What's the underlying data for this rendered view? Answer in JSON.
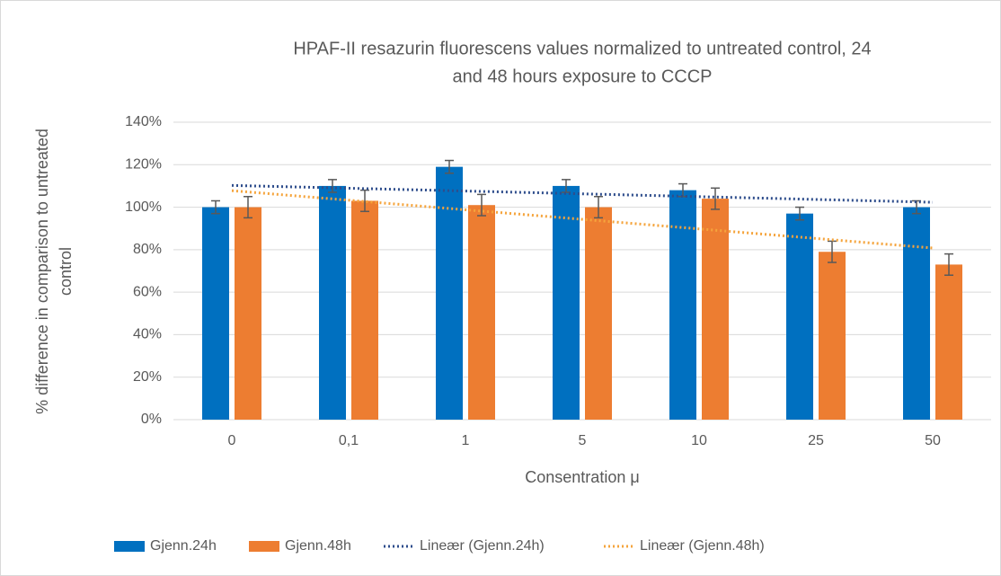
{
  "chart_data": {
    "type": "bar",
    "title": [
      "HPAF-II resazurin fluorescens values normalized to untreated control, 24",
      "and 48 hours exposure to CCCP"
    ],
    "xlabel": "Consentration μ",
    "ylabel": [
      "% difference in comparison to untreated",
      "control"
    ],
    "categories": [
      "0",
      "0,1",
      "1",
      "5",
      "10",
      "25",
      "50"
    ],
    "series": [
      {
        "name": "Gjenn.24h",
        "color": "#0070c0",
        "values": [
          100,
          110,
          119,
          110,
          108,
          97,
          100
        ],
        "errors": [
          3,
          3,
          3,
          3,
          3,
          3,
          3
        ],
        "trendline": {
          "name": "Lineær (Gjenn.24h)",
          "color": "#2e4d8c"
        }
      },
      {
        "name": "Gjenn.48h",
        "color": "#ed7d31",
        "values": [
          100,
          103,
          101,
          100,
          104,
          79,
          73
        ],
        "errors": [
          5,
          5,
          5,
          5,
          5,
          5,
          5
        ],
        "trendline": {
          "name": "Lineær (Gjenn.48h)",
          "color": "#f5a43c"
        }
      }
    ],
    "ylim": [
      0,
      140
    ],
    "yticks": [
      {
        "value": 0,
        "label": "0%"
      },
      {
        "value": 20,
        "label": "20%"
      },
      {
        "value": 40,
        "label": "40%"
      },
      {
        "value": 60,
        "label": "60%"
      },
      {
        "value": 80,
        "label": "80%"
      },
      {
        "value": 100,
        "label": "100%"
      },
      {
        "value": 120,
        "label": "120%"
      },
      {
        "value": 140,
        "label": "140%"
      }
    ],
    "grid": true,
    "legend": "bottom"
  }
}
